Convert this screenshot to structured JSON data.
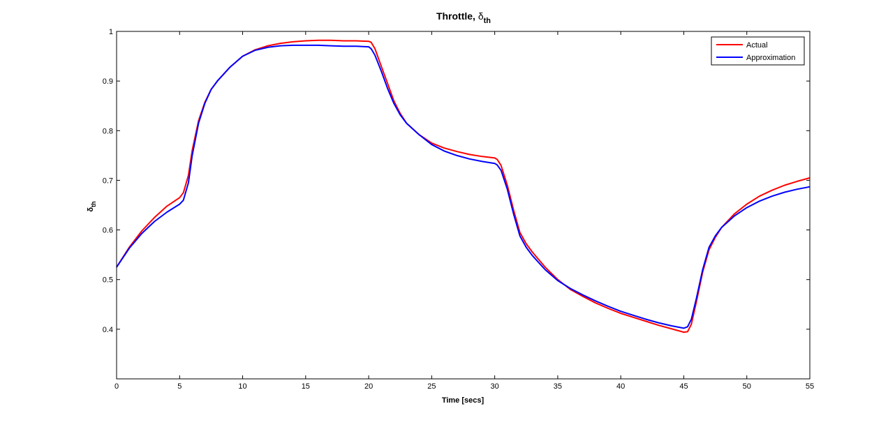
{
  "chart_data": {
    "type": "line",
    "title": "Throttle, ",
    "title_symbol": "δ",
    "title_subscript": "th",
    "xlabel": "Time [secs]",
    "ylabel_symbol": "δ",
    "ylabel_subscript": "th",
    "xlim": [
      0,
      55
    ],
    "ylim": [
      0.3,
      1.0
    ],
    "xticks": [
      0,
      5,
      10,
      15,
      20,
      25,
      30,
      35,
      40,
      45,
      50,
      55
    ],
    "yticks": [
      0.4,
      0.5,
      0.6,
      0.7,
      0.8,
      0.9,
      1.0
    ],
    "ytick_labels": [
      "0.4",
      "0.5",
      "0.6",
      "0.7",
      "0.8",
      "0.9",
      "1"
    ],
    "grid": false,
    "legend_position": "top-right",
    "series": [
      {
        "name": "Actual",
        "color": "#ff0000",
        "x": [
          0,
          1,
          2,
          3,
          4,
          5,
          5.3,
          5.7,
          6,
          6.5,
          7,
          7.5,
          8,
          9,
          10,
          11,
          12,
          13,
          14,
          15,
          16,
          17,
          18,
          19,
          20,
          20.2,
          20.5,
          21,
          21.5,
          22,
          22.5,
          23,
          24,
          25,
          26,
          27,
          28,
          29,
          30,
          30.2,
          30.5,
          31,
          31.5,
          32,
          32.5,
          33,
          34,
          35,
          36,
          37,
          38,
          39,
          40,
          41,
          42,
          43,
          44,
          45,
          45.3,
          45.6,
          46,
          46.5,
          47,
          47.5,
          48,
          49,
          50,
          51,
          52,
          53,
          54,
          55
        ],
        "y": [
          0.525,
          0.565,
          0.598,
          0.625,
          0.648,
          0.665,
          0.675,
          0.71,
          0.76,
          0.82,
          0.857,
          0.883,
          0.9,
          0.928,
          0.95,
          0.963,
          0.971,
          0.976,
          0.979,
          0.981,
          0.982,
          0.982,
          0.981,
          0.981,
          0.98,
          0.978,
          0.965,
          0.93,
          0.895,
          0.86,
          0.835,
          0.815,
          0.792,
          0.775,
          0.765,
          0.758,
          0.752,
          0.748,
          0.745,
          0.742,
          0.73,
          0.69,
          0.64,
          0.595,
          0.572,
          0.555,
          0.525,
          0.5,
          0.48,
          0.466,
          0.453,
          0.442,
          0.432,
          0.424,
          0.416,
          0.408,
          0.401,
          0.394,
          0.395,
          0.41,
          0.455,
          0.515,
          0.56,
          0.585,
          0.605,
          0.632,
          0.652,
          0.668,
          0.68,
          0.69,
          0.698,
          0.705
        ]
      },
      {
        "name": "Approximation",
        "color": "#0000ff",
        "x": [
          0,
          1,
          2,
          3,
          4,
          5,
          5.3,
          5.7,
          6,
          6.5,
          7,
          7.5,
          8,
          9,
          10,
          11,
          12,
          13,
          14,
          15,
          16,
          17,
          18,
          19,
          20,
          20.2,
          20.5,
          21,
          21.5,
          22,
          22.5,
          23,
          24,
          25,
          26,
          27,
          28,
          29,
          30,
          30.2,
          30.5,
          31,
          31.5,
          32,
          32.5,
          33,
          34,
          35,
          36,
          37,
          38,
          39,
          40,
          41,
          42,
          43,
          44,
          45,
          45.3,
          45.6,
          46,
          46.5,
          47,
          47.5,
          48,
          49,
          50,
          51,
          52,
          53,
          54,
          55
        ],
        "y": [
          0.525,
          0.563,
          0.593,
          0.617,
          0.636,
          0.652,
          0.66,
          0.695,
          0.75,
          0.815,
          0.855,
          0.883,
          0.9,
          0.928,
          0.95,
          0.962,
          0.968,
          0.971,
          0.972,
          0.972,
          0.972,
          0.971,
          0.97,
          0.97,
          0.969,
          0.965,
          0.952,
          0.92,
          0.885,
          0.855,
          0.832,
          0.815,
          0.792,
          0.772,
          0.759,
          0.75,
          0.743,
          0.738,
          0.734,
          0.731,
          0.72,
          0.682,
          0.632,
          0.588,
          0.565,
          0.548,
          0.52,
          0.498,
          0.482,
          0.469,
          0.457,
          0.446,
          0.436,
          0.428,
          0.42,
          0.413,
          0.407,
          0.402,
          0.405,
          0.42,
          0.462,
          0.52,
          0.565,
          0.588,
          0.605,
          0.628,
          0.645,
          0.658,
          0.668,
          0.676,
          0.682,
          0.687
        ]
      }
    ]
  }
}
